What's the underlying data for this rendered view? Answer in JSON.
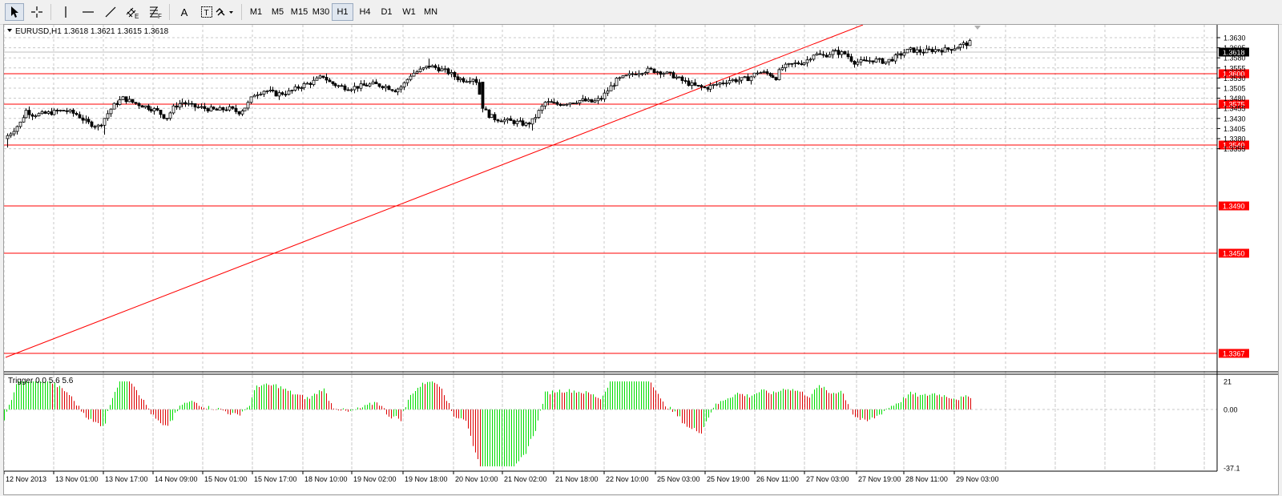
{
  "toolbar": {
    "tools": [
      {
        "name": "cursor-tool",
        "icon": "arrow-cursor-icon"
      },
      {
        "name": "crosshair-tool",
        "icon": "crosshair-icon"
      },
      {
        "name": "vertical-line-tool",
        "icon": "vertical-line-icon"
      },
      {
        "name": "horizontal-line-tool",
        "icon": "horizontal-line-icon"
      },
      {
        "name": "trendline-tool",
        "icon": "trendline-icon"
      },
      {
        "name": "equidistant-channel-tool",
        "icon": "channel-icon"
      },
      {
        "name": "fibonacci-tool",
        "icon": "fibonacci-icon"
      },
      {
        "name": "text-tool",
        "icon": "text-a-icon"
      },
      {
        "name": "text-label-tool",
        "icon": "text-label-icon"
      },
      {
        "name": "arrows-tool",
        "icon": "arrows-dropdown-icon"
      }
    ],
    "timeframes": [
      "M1",
      "M5",
      "M15",
      "M30",
      "H1",
      "H4",
      "D1",
      "W1",
      "MN"
    ],
    "active_timeframe": "H1",
    "channel_letter": "E",
    "fibo_letter": "F",
    "text_letter": "A",
    "label_letter": "T"
  },
  "chart": {
    "header": "EURUSD,H1  1.3618 1.3621 1.3615 1.3618",
    "symbol": "EURUSD",
    "timeframe": "H1",
    "ohlc": {
      "open": 1.3618,
      "high": 1.3621,
      "low": 1.3615,
      "close": 1.3618
    },
    "bid_label": "1.3618",
    "price_ticks": [
      "1.3630",
      "1.3605",
      "1.3580",
      "1.3555",
      "1.3530",
      "1.3505",
      "1.3480",
      "1.3455",
      "1.3430",
      "1.3405",
      "1.3380",
      "1.3355"
    ],
    "levels": [
      "1.3600",
      "1.3575",
      "1.3540",
      "1.3490",
      "1.3450",
      "1.3367"
    ],
    "level_color": "#ff0000",
    "bull_candle_color": "#ffffff",
    "bear_candle_color": "#000000",
    "trendline": {
      "from_time": "12 Nov 2013",
      "from_price": 1.3359,
      "to_time": "25 Nov 19:00",
      "to_price": 1.364
    },
    "time_labels": [
      "12 Nov 2013",
      "13 Nov 01:00",
      "13 Nov 17:00",
      "14 Nov 09:00",
      "15 Nov 01:00",
      "15 Nov 17:00",
      "18 Nov 10:00",
      "19 Nov 02:00",
      "19 Nov 18:00",
      "20 Nov 10:00",
      "21 Nov 02:00",
      "21 Nov 18:00",
      "22 Nov 10:00",
      "25 Nov 03:00",
      "25 Nov 19:00",
      "26 Nov 11:00",
      "27 Nov 03:00",
      "27 Nov 19:00",
      "28 Nov 11:00",
      "29 Nov 03:00"
    ]
  },
  "indicator": {
    "label": "Trigger 0.0 5.6 5.6",
    "scale_labels": [
      "21",
      "0.00",
      "-37.1"
    ],
    "pos_color": "#00dd00",
    "neg_color": "#dd0000"
  },
  "chart_data": {
    "type": "candlestick",
    "title": "EURUSD,H1",
    "y_range": [
      1.3355,
      1.364
    ],
    "horizontal_levels": [
      1.36,
      1.3575,
      1.354,
      1.349,
      1.345,
      1.3367
    ],
    "candles": [
      {
        "t": "12 Nov 2013",
        "o": 1.339,
        "h": 1.3418,
        "l": 1.3359,
        "c": 1.3406
      },
      {
        "t": "13 Nov 01:00",
        "o": 1.3437,
        "h": 1.3448,
        "l": 1.3416,
        "c": 1.343
      },
      {
        "t": "13 Nov 17:00",
        "o": 1.3481,
        "h": 1.3495,
        "l": 1.3462,
        "c": 1.347
      },
      {
        "t": "14 Nov 09:00",
        "o": 1.344,
        "h": 1.3484,
        "l": 1.3417,
        "c": 1.3462
      },
      {
        "t": "15 Nov 01:00",
        "o": 1.3455,
        "h": 1.3468,
        "l": 1.3435,
        "c": 1.3445
      },
      {
        "t": "15 Nov 17:00",
        "o": 1.349,
        "h": 1.35,
        "l": 1.3478,
        "c": 1.3485
      },
      {
        "t": "18 Nov 10:00",
        "o": 1.351,
        "h": 1.3542,
        "l": 1.3505,
        "c": 1.3528
      },
      {
        "t": "19 Nov 02:00",
        "o": 1.352,
        "h": 1.354,
        "l": 1.349,
        "c": 1.3495
      },
      {
        "t": "19 Nov 18:00",
        "o": 1.355,
        "h": 1.3578,
        "l": 1.354,
        "c": 1.356
      },
      {
        "t": "20 Nov 10:00",
        "o": 1.353,
        "h": 1.3545,
        "l": 1.351,
        "c": 1.352
      },
      {
        "t": "21 Nov 02:00",
        "o": 1.342,
        "h": 1.344,
        "l": 1.341,
        "c": 1.3425
      },
      {
        "t": "21 Nov 18:00",
        "o": 1.347,
        "h": 1.3485,
        "l": 1.3455,
        "c": 1.3475
      },
      {
        "t": "22 Nov 10:00",
        "o": 1.3545,
        "h": 1.3558,
        "l": 1.3535,
        "c": 1.355
      },
      {
        "t": "25 Nov 03:00",
        "o": 1.351,
        "h": 1.352,
        "l": 1.3493,
        "c": 1.35
      },
      {
        "t": "25 Nov 19:00",
        "o": 1.353,
        "h": 1.3545,
        "l": 1.3522,
        "c": 1.354
      },
      {
        "t": "26 Nov 11:00",
        "o": 1.3575,
        "h": 1.3582,
        "l": 1.356,
        "c": 1.357
      },
      {
        "t": "27 Nov 03:00",
        "o": 1.359,
        "h": 1.361,
        "l": 1.3575,
        "c": 1.3582
      },
      {
        "t": "27 Nov 19:00",
        "o": 1.357,
        "h": 1.358,
        "l": 1.356,
        "c": 1.3575
      },
      {
        "t": "28 Nov 11:00",
        "o": 1.3595,
        "h": 1.3605,
        "l": 1.3588,
        "c": 1.36
      },
      {
        "t": "29 Nov 03:00",
        "o": 1.3612,
        "h": 1.3621,
        "l": 1.3608,
        "c": 1.3618
      }
    ],
    "indicator": {
      "name": "Trigger",
      "params": [
        0.0,
        5.6,
        5.6
      ],
      "range": [
        -37.1,
        21
      ]
    }
  }
}
